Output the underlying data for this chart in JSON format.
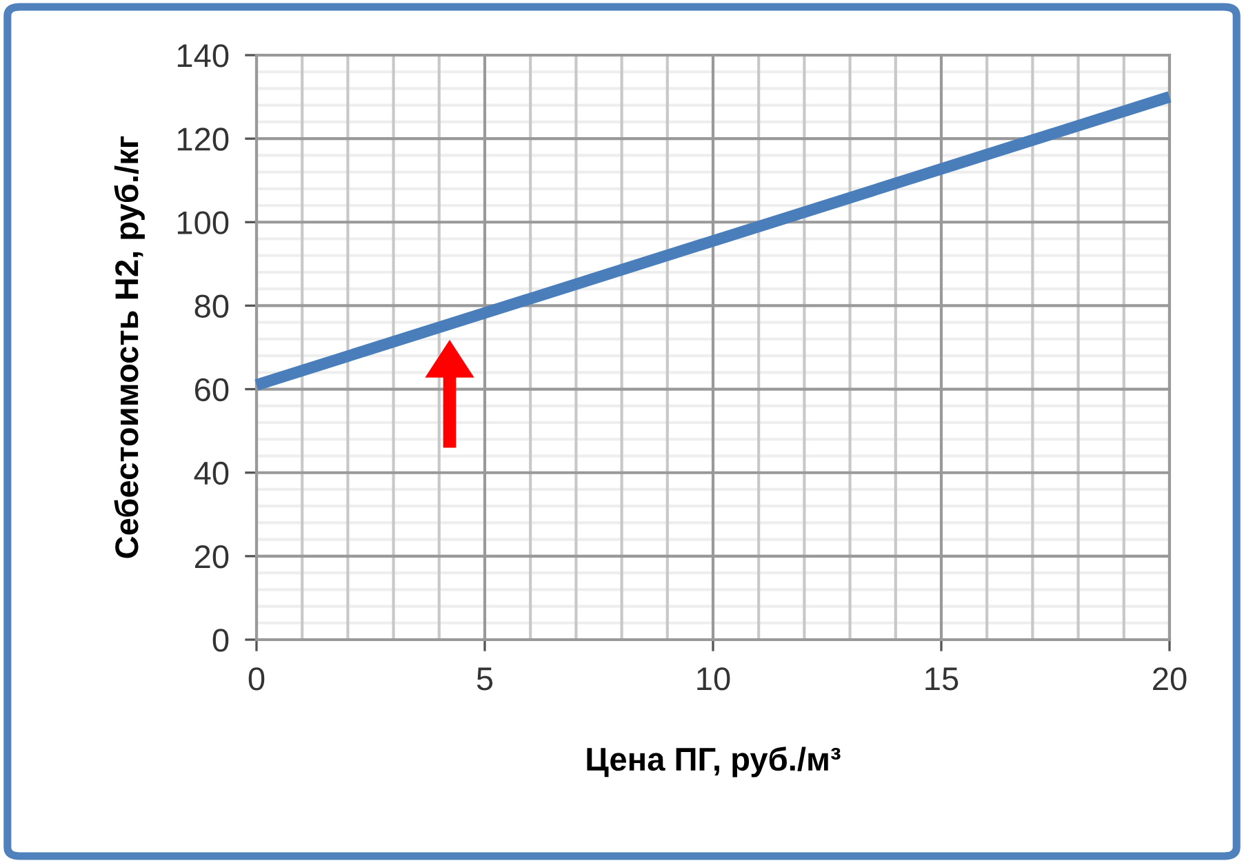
{
  "chart_data": {
    "type": "line",
    "xlabel": "Цена ПГ, руб./м³",
    "ylabel": "Себестоимость Н2, руб./кг",
    "series": [
      {
        "color": "#4a7ebb",
        "x": [
          0,
          20
        ],
        "values": [
          61,
          130
        ]
      }
    ],
    "xlim": [
      0,
      20
    ],
    "ylim": [
      0,
      140
    ],
    "xticks": [
      0,
      5,
      10,
      15,
      20
    ],
    "yticks": [
      0,
      20,
      40,
      60,
      80,
      100,
      120,
      140
    ],
    "grid": true,
    "marker": "none",
    "line_style": "solid"
  }
}
